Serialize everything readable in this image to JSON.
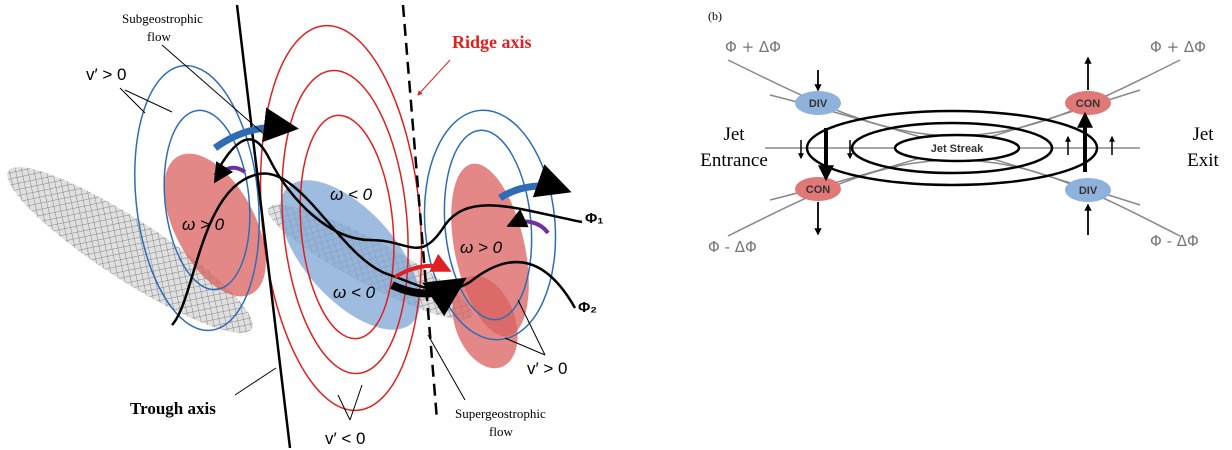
{
  "panel_a": {
    "subgeostrophic": [
      "Subgeostrophic",
      "flow"
    ],
    "v_pos_left": "v′ > 0",
    "omega_pos_left": "ω > 0",
    "omega_neg_top": "ω < 0",
    "omega_neg_bottom": "ω < 0",
    "omega_pos_right": "ω > 0",
    "ridge_axis": "Ridge axis",
    "phi1": "Φ₁",
    "phi2": "Φ₂",
    "v_pos_right": "v′ > 0",
    "trough_axis": "Trough axis",
    "v_neg": "v′ < 0",
    "supergeostrophic": [
      "Supergeostrophic",
      "flow"
    ]
  },
  "panel_b": {
    "label": "(b)",
    "phi_plus_left": "Φ + ΔΦ",
    "phi_plus_right": "Φ + ΔΦ",
    "phi_minus_left": "Φ - ΔΦ",
    "phi_minus_right": "Φ - ΔΦ",
    "div_top": "DIV",
    "con_top": "CON",
    "con_bottom": "CON",
    "div_bottom": "DIV",
    "jet_entrance": [
      "Jet",
      "Entrance"
    ],
    "jet_exit": [
      "Jet",
      "Exit"
    ],
    "jet_streak": "Jet Streak"
  }
}
